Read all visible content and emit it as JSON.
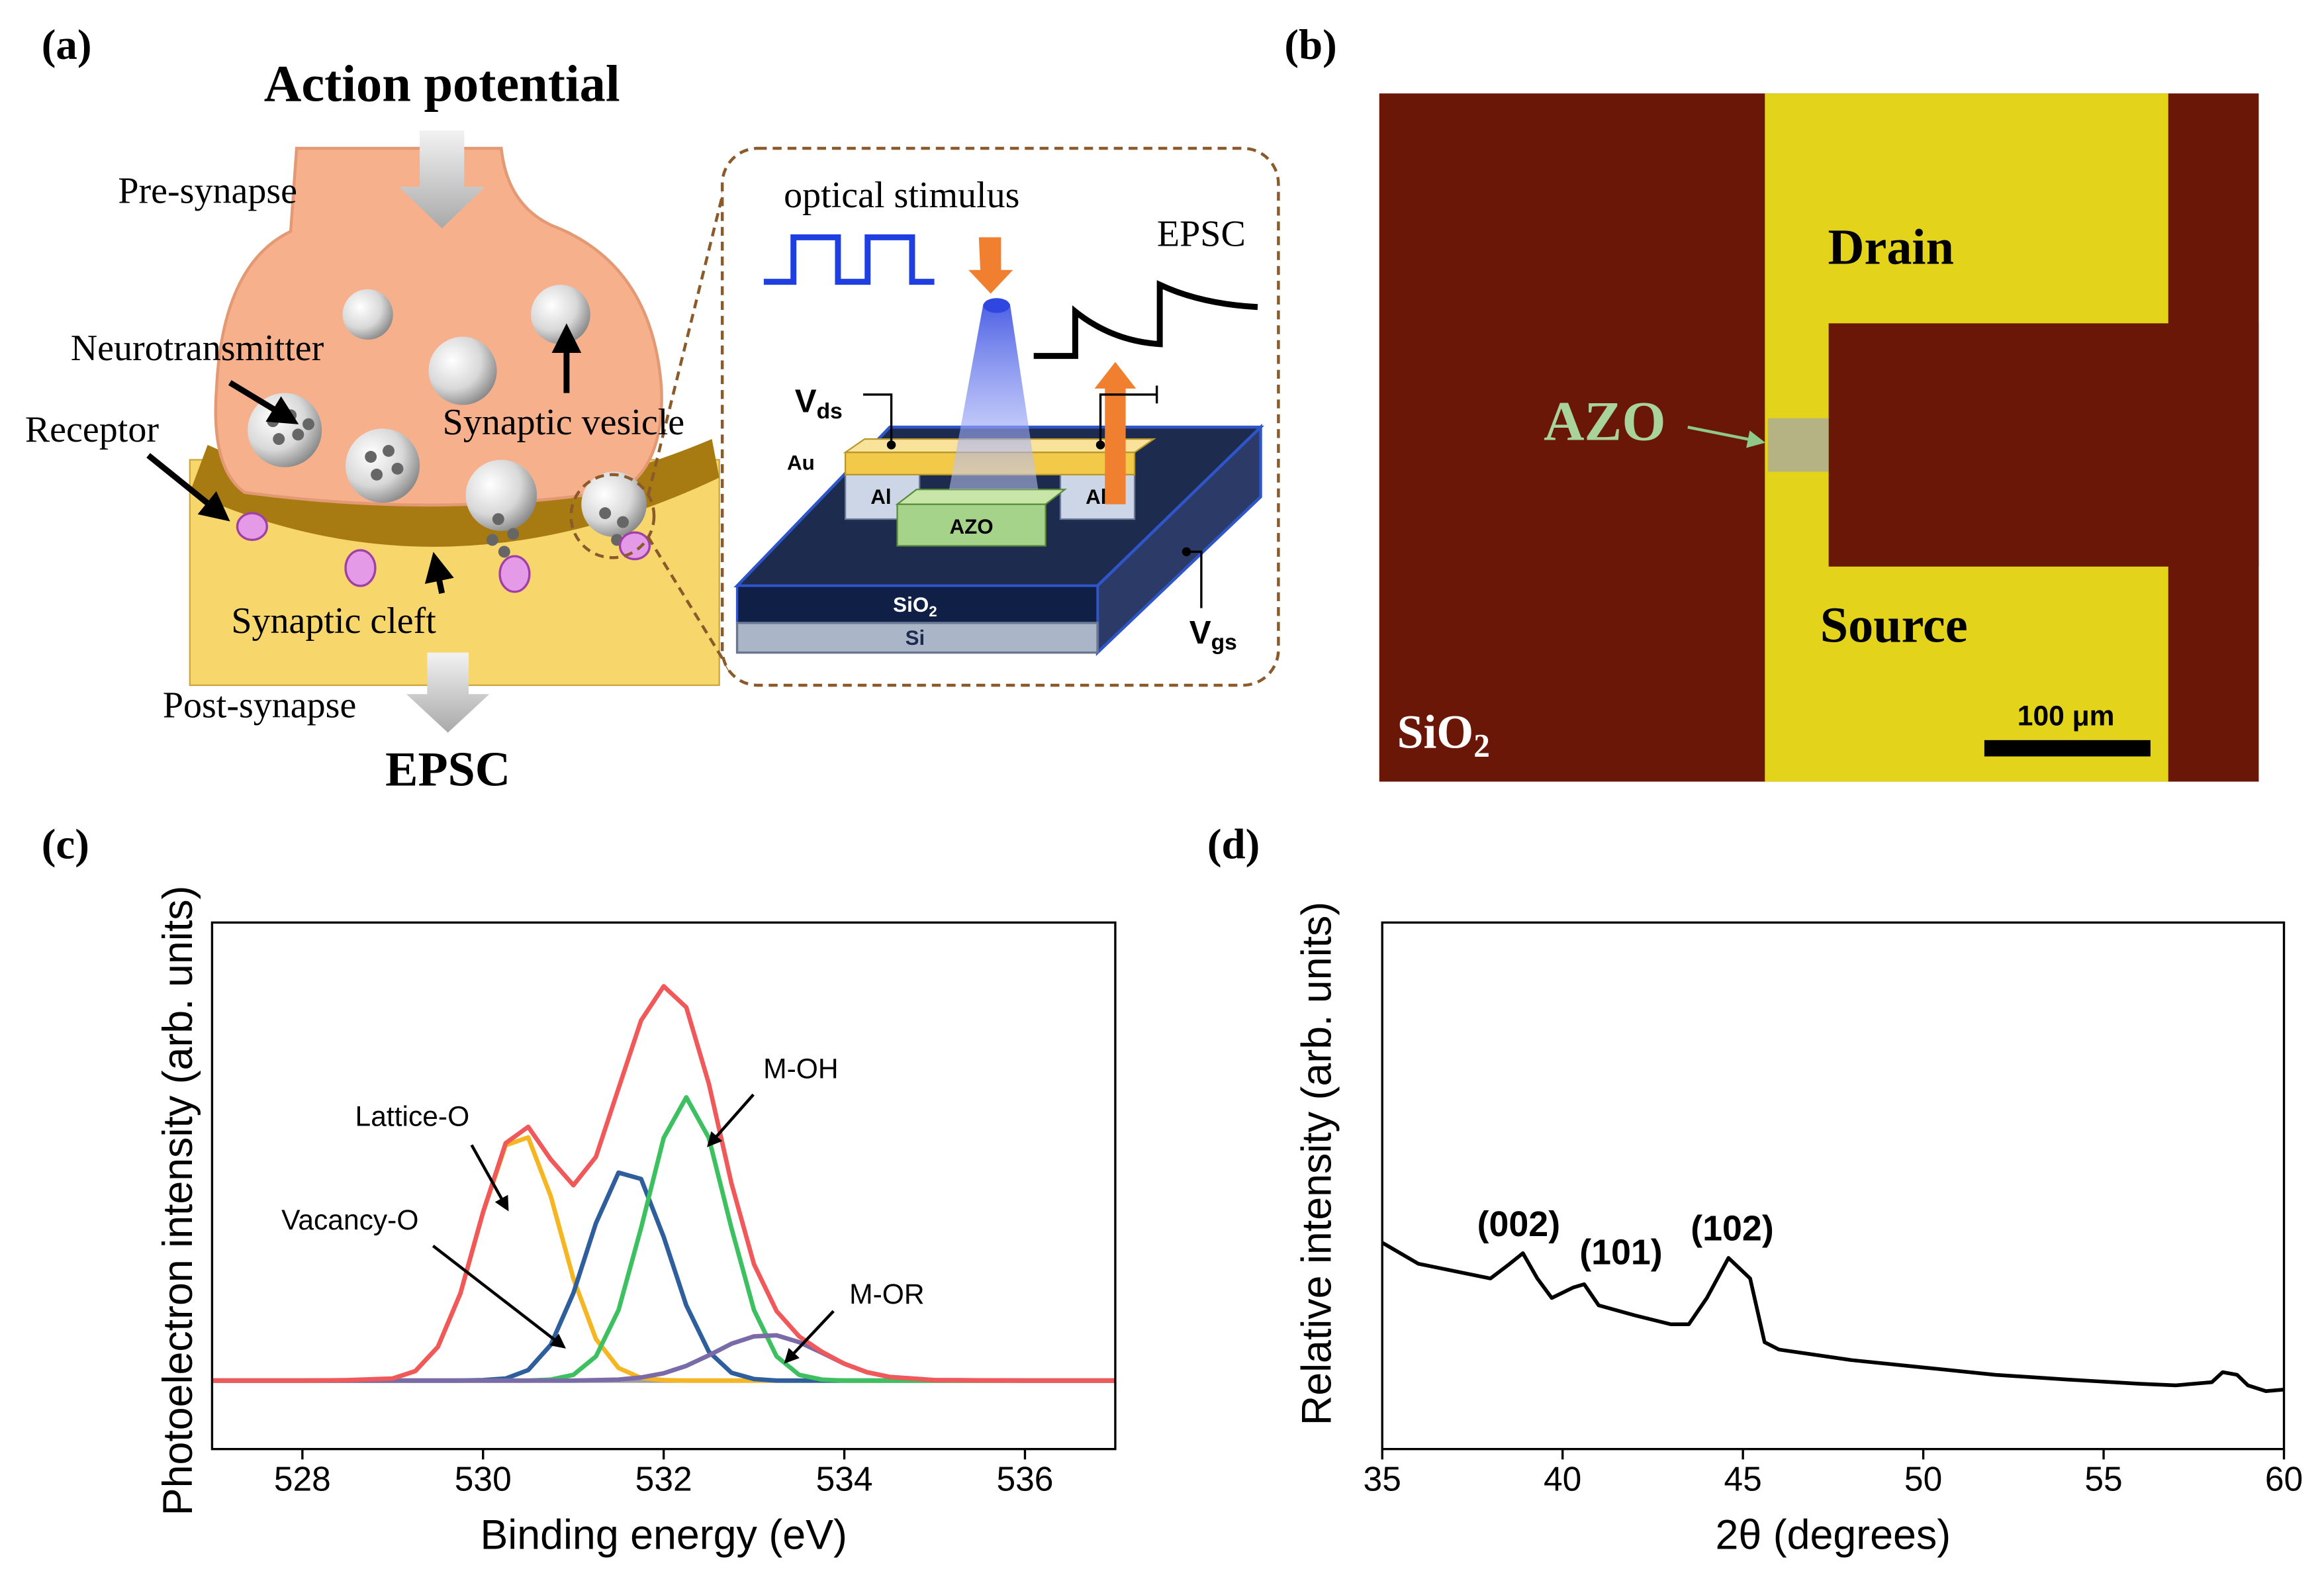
{
  "panel_a": {
    "label": "(a)",
    "title": "Action potential",
    "pre": "Pre-synapse",
    "neurotransmitter": "Neurotransmitter",
    "receptor": "Receptor",
    "vesicle": "Synaptic vesicle",
    "cleft": "Synaptic cleft",
    "post": "Post-synapse",
    "output": "EPSC",
    "inset": {
      "stimulus": "optical stimulus",
      "response": "EPSC",
      "vds": {
        "main": "V",
        "sub": "ds"
      },
      "au": "Au",
      "al_left": "Al",
      "al_right": "Al",
      "channel": "AZO",
      "oxide": {
        "main": "SiO",
        "sub": "2"
      },
      "substrate": "Si",
      "vgs": {
        "main": "V",
        "sub": "gs"
      }
    }
  },
  "panel_b": {
    "label": "(b)",
    "drain": "Drain",
    "channel": "AZO",
    "source": "Source",
    "substrate": {
      "main": "SiO",
      "sub": "2"
    },
    "scale_bar": "100 μm"
  },
  "chart_data": [
    {
      "type": "line",
      "panel_label": "(c)",
      "xlabel": "Binding energy (eV)",
      "ylabel": "Photoelectron intensity (arb. units)",
      "x": [
        527,
        528,
        528.5,
        529,
        529.25,
        529.5,
        529.75,
        530,
        530.25,
        530.5,
        530.75,
        531,
        531.25,
        531.5,
        531.75,
        532,
        532.25,
        532.5,
        532.75,
        533,
        533.25,
        533.5,
        533.75,
        534,
        534.25,
        534.5,
        535,
        536,
        537
      ],
      "xlim": [
        527,
        537
      ],
      "xticks": [
        528,
        530,
        532,
        534,
        536
      ],
      "ylim": [
        0,
        100
      ],
      "series": [
        {
          "color": "#9e9e9e",
          "values": [
            13,
            13,
            13,
            13,
            13,
            13,
            13,
            13,
            13,
            13,
            13,
            13,
            13,
            13,
            13,
            13,
            13,
            13,
            13,
            13,
            13,
            13,
            13,
            13,
            13,
            13,
            13,
            13,
            13
          ]
        },
        {
          "name": "Lattice-O",
          "color": "#f5b622",
          "values": [
            13,
            13,
            13,
            13.4,
            14.8,
            19.4,
            29.6,
            44.9,
            57.7,
            59.2,
            48.0,
            32.4,
            20.9,
            15.4,
            13.5,
            13.1,
            13,
            13,
            13,
            13,
            13,
            13,
            13,
            13,
            13,
            13,
            13,
            13,
            13
          ]
        },
        {
          "name": "Vacancy-O",
          "color": "#2e5f9c",
          "values": [
            13,
            13,
            13,
            13,
            13,
            13,
            13,
            13.1,
            13.4,
            15.0,
            19.8,
            29.6,
            42.9,
            52.5,
            51.3,
            40.3,
            27.3,
            18.5,
            14.5,
            13.3,
            13,
            13,
            13,
            13,
            13,
            13,
            13,
            13,
            13
          ]
        },
        {
          "name": "M-OH",
          "color": "#3cc060",
          "values": [
            13,
            13,
            13,
            13,
            13,
            13,
            13,
            13,
            13,
            13,
            13.2,
            14.1,
            17.6,
            26.4,
            42.0,
            59.1,
            66.8,
            59.1,
            42.0,
            26.4,
            17.6,
            14.1,
            13.2,
            13,
            13,
            13,
            13,
            13,
            13
          ]
        },
        {
          "name": "M-OR",
          "color": "#7b6aa8",
          "values": [
            13,
            13,
            13,
            13,
            13,
            13,
            13,
            13,
            13,
            13,
            13,
            13,
            13.1,
            13.2,
            13.6,
            14.4,
            15.8,
            17.8,
            20.0,
            21.4,
            21.6,
            20.3,
            18.3,
            16.2,
            14.6,
            13.7,
            13.1,
            13,
            13
          ]
        },
        {
          "color": "#f0585a",
          "values": [
            13,
            13,
            13.1,
            13.4,
            14.8,
            19.4,
            29.6,
            45.0,
            58.1,
            61.2,
            55.0,
            50.1,
            55.5,
            68.5,
            81.4,
            87.9,
            83.9,
            69.4,
            50.5,
            35.1,
            26.2,
            21.4,
            18.5,
            16.2,
            14.6,
            13.7,
            13.1,
            13,
            13
          ]
        }
      ]
    },
    {
      "type": "line",
      "panel_label": "(d)",
      "xlabel": "2θ (degrees)",
      "ylabel": "Relative intensity (arb. units)",
      "x": [
        35,
        36,
        37,
        38,
        38.5,
        38.9,
        39.3,
        39.7,
        40.3,
        40.6,
        41,
        42,
        43,
        43.5,
        44,
        44.6,
        45.2,
        45.6,
        46,
        48,
        50,
        52,
        54,
        56,
        57,
        58,
        58.3,
        58.7,
        59,
        59.5,
        60
      ],
      "values": [
        39.2,
        35.2,
        33.8,
        32.4,
        35.0,
        37.2,
        32.4,
        28.7,
        30.7,
        31.3,
        27.3,
        25.4,
        23.7,
        23.7,
        28.7,
        36.3,
        32.4,
        20.3,
        18.9,
        16.9,
        15.5,
        14.1,
        13.2,
        12.4,
        12.1,
        12.7,
        14.6,
        14.1,
        12.1,
        11.0,
        11.3
      ],
      "color": "#000000",
      "xlim": [
        35,
        60
      ],
      "xticks": [
        35,
        40,
        45,
        50,
        55,
        60
      ],
      "ylim": [
        0,
        100
      ],
      "annotations": [
        "(002)",
        "(101)",
        "(102)"
      ]
    }
  ]
}
